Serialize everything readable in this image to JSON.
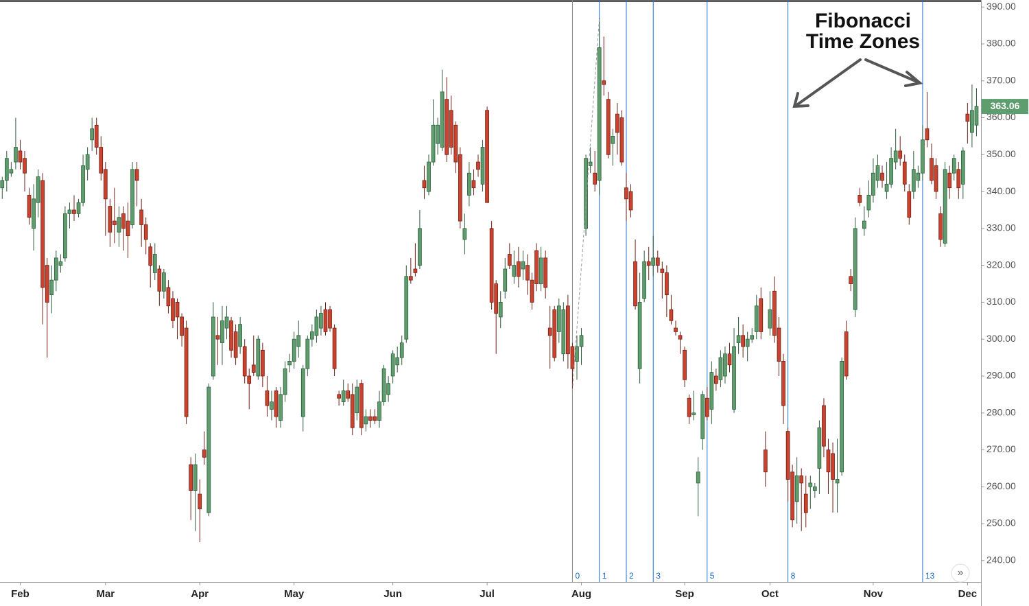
{
  "chart_data": {
    "type": "candlestick",
    "annotation": [
      "Fibonacci",
      "Time Zones"
    ],
    "ylim": [
      234.2,
      391.9
    ],
    "yticks": [
      {
        "value": 240,
        "label": "240.00"
      },
      {
        "value": 250,
        "label": "250.00"
      },
      {
        "value": 260,
        "label": "260.00"
      },
      {
        "value": 270,
        "label": "270.00"
      },
      {
        "value": 280,
        "label": "280.00"
      },
      {
        "value": 290,
        "label": "290.00"
      },
      {
        "value": 300,
        "label": "300.00"
      },
      {
        "value": 310,
        "label": "310.00"
      },
      {
        "value": 320,
        "label": "320.00"
      },
      {
        "value": 330,
        "label": "330.00"
      },
      {
        "value": 340,
        "label": "340.00"
      },
      {
        "value": 350,
        "label": "350.00"
      },
      {
        "value": 360,
        "label": "360.00"
      },
      {
        "value": 370,
        "label": "370.00"
      },
      {
        "value": 380,
        "label": "380.00"
      },
      {
        "value": 390,
        "label": "390.00"
      }
    ],
    "xlim": [
      -0.5,
      218
    ],
    "xticks": [
      {
        "value": 4,
        "label": "Feb"
      },
      {
        "value": 23,
        "label": "Mar"
      },
      {
        "value": 44,
        "label": "Apr"
      },
      {
        "value": 65,
        "label": "May"
      },
      {
        "value": 87,
        "label": "Jun"
      },
      {
        "value": 108,
        "label": "Jul"
      },
      {
        "value": 129,
        "label": "Aug"
      },
      {
        "value": 152,
        "label": "Sep"
      },
      {
        "value": 171,
        "label": "Oct"
      },
      {
        "value": 194,
        "label": "Nov"
      },
      {
        "value": 215,
        "label": "Dec"
      }
    ],
    "fib_zones": [
      {
        "value": 127,
        "label": "0"
      },
      {
        "value": 133,
        "label": "1"
      },
      {
        "value": 139,
        "label": "2"
      },
      {
        "value": 145,
        "label": "3"
      },
      {
        "value": 157,
        "label": "5"
      },
      {
        "value": 175,
        "label": "8"
      },
      {
        "value": 205,
        "label": "13"
      }
    ],
    "up_color": "#5e9e6e",
    "down_color": "#c9432f",
    "candles": [
      [
        341,
        344,
        338,
        343
      ],
      [
        343,
        351,
        340,
        349
      ],
      [
        345,
        348,
        344,
        346
      ],
      [
        348,
        360,
        346,
        352
      ],
      [
        351,
        354,
        346,
        348
      ],
      [
        349,
        351,
        340,
        345
      ],
      [
        339,
        341,
        331,
        333
      ],
      [
        330,
        342,
        324,
        338
      ],
      [
        337,
        346,
        333,
        344
      ],
      [
        343,
        345,
        304,
        314
      ],
      [
        320,
        322,
        295,
        310
      ],
      [
        312,
        320,
        307,
        316
      ],
      [
        316,
        324,
        313,
        322
      ],
      [
        320,
        323,
        318,
        321
      ],
      [
        322,
        336,
        321,
        334
      ],
      [
        334,
        337,
        330,
        335
      ],
      [
        335,
        339,
        332,
        334
      ],
      [
        334,
        338,
        333,
        337
      ],
      [
        337,
        350,
        336,
        347
      ],
      [
        346,
        352,
        343,
        350
      ],
      [
        354,
        360,
        351,
        357
      ],
      [
        358,
        360,
        350,
        352
      ],
      [
        352,
        355,
        343,
        345
      ],
      [
        346,
        348,
        328,
        338
      ],
      [
        336,
        338,
        325,
        329
      ],
      [
        332,
        341,
        326,
        331
      ],
      [
        329,
        336,
        325,
        333
      ],
      [
        334,
        336,
        324,
        330
      ],
      [
        332,
        337,
        322,
        328
      ],
      [
        331,
        348,
        330,
        346
      ],
      [
        346,
        348,
        336,
        343
      ],
      [
        335,
        338,
        325,
        331
      ],
      [
        331,
        333,
        323,
        327
      ],
      [
        325,
        326,
        314,
        320
      ],
      [
        318,
        326,
        316,
        323
      ],
      [
        319,
        320,
        309,
        313
      ],
      [
        313,
        319,
        311,
        318
      ],
      [
        314,
        316,
        307,
        309
      ],
      [
        311,
        313,
        303,
        305
      ],
      [
        310,
        311,
        300,
        306
      ],
      [
        306,
        307,
        298,
        301
      ],
      [
        303,
        305,
        277,
        279
      ],
      [
        266,
        268,
        251,
        259
      ],
      [
        259,
        269,
        248,
        266
      ],
      [
        258,
        262,
        245,
        254
      ],
      [
        270,
        275,
        266,
        268
      ],
      [
        253,
        288,
        252,
        287
      ],
      [
        290,
        310,
        289,
        306
      ],
      [
        301,
        306,
        293,
        300
      ],
      [
        299,
        309,
        293,
        305
      ],
      [
        303,
        309,
        300,
        306
      ],
      [
        305,
        306,
        295,
        297
      ],
      [
        302,
        304,
        293,
        295
      ],
      [
        298,
        306,
        296,
        304
      ],
      [
        298,
        300,
        288,
        290
      ],
      [
        290,
        292,
        281,
        288
      ],
      [
        293,
        301,
        290,
        291
      ],
      [
        290,
        301,
        289,
        300
      ],
      [
        297,
        299,
        287,
        290
      ],
      [
        286,
        290,
        279,
        282
      ],
      [
        281,
        286,
        278,
        283
      ],
      [
        286,
        287,
        276,
        279
      ],
      [
        278,
        287,
        276,
        285
      ],
      [
        285,
        294,
        283,
        292
      ],
      [
        293,
        296,
        291,
        294
      ],
      [
        294,
        302,
        292,
        300
      ],
      [
        298,
        305,
        295,
        301
      ],
      [
        279,
        293,
        275,
        292
      ],
      [
        292,
        301,
        290,
        300
      ],
      [
        300,
        304,
        298,
        302
      ],
      [
        301,
        308,
        299,
        306
      ],
      [
        303,
        309,
        301,
        307
      ],
      [
        308,
        310,
        301,
        302
      ],
      [
        308,
        309,
        302,
        303
      ],
      [
        303,
        304,
        290,
        292
      ],
      [
        285,
        286,
        282,
        284
      ],
      [
        283,
        289,
        282,
        286
      ],
      [
        286,
        288,
        283,
        284
      ],
      [
        285,
        288,
        274,
        276
      ],
      [
        280,
        289,
        278,
        287
      ],
      [
        288,
        289,
        274,
        276
      ],
      [
        277,
        281,
        275,
        279
      ],
      [
        279,
        281,
        276,
        278
      ],
      [
        279,
        281,
        277,
        278
      ],
      [
        278,
        286,
        276,
        283
      ],
      [
        283,
        293,
        282,
        292
      ],
      [
        285,
        290,
        283,
        288
      ],
      [
        290,
        297,
        288,
        296
      ],
      [
        293,
        298,
        291,
        295
      ],
      [
        295,
        301,
        293,
        299
      ],
      [
        300,
        320,
        299,
        317
      ],
      [
        317,
        322,
        315,
        316
      ],
      [
        319,
        326,
        317,
        318
      ],
      [
        320,
        335,
        319,
        330
      ],
      [
        343,
        347,
        338,
        341
      ],
      [
        340,
        350,
        339,
        348
      ],
      [
        348,
        365,
        347,
        358
      ],
      [
        353,
        360,
        350,
        358
      ],
      [
        352,
        373,
        351,
        367
      ],
      [
        365,
        371,
        348,
        350
      ],
      [
        362,
        366,
        350,
        352
      ],
      [
        358,
        359,
        345,
        348
      ],
      [
        350,
        352,
        330,
        332
      ],
      [
        327,
        334,
        323,
        330
      ],
      [
        339,
        348,
        336,
        345
      ],
      [
        343,
        346,
        339,
        341
      ],
      [
        348,
        350,
        344,
        346
      ],
      [
        342,
        354,
        340,
        352
      ],
      [
        362,
        363,
        337,
        337
      ],
      [
        330,
        332,
        308,
        310
      ],
      [
        315,
        316,
        296,
        307
      ],
      [
        306,
        313,
        303,
        310
      ],
      [
        313,
        322,
        311,
        319
      ],
      [
        323,
        326,
        319,
        320
      ],
      [
        317,
        324,
        315,
        320
      ],
      [
        321,
        325,
        314,
        317
      ],
      [
        319,
        324,
        316,
        321
      ],
      [
        320,
        323,
        312,
        316
      ],
      [
        316,
        318,
        308,
        310
      ],
      [
        324,
        326,
        313,
        315
      ],
      [
        315,
        325,
        313,
        322
      ],
      [
        322,
        324,
        311,
        314
      ],
      [
        303,
        309,
        292,
        301
      ],
      [
        308,
        309,
        294,
        295
      ],
      [
        302,
        311,
        299,
        309
      ],
      [
        296,
        310,
        294,
        308
      ],
      [
        309,
        312,
        292,
        296
      ],
      [
        298,
        299,
        286,
        292
      ],
      [
        294,
        301,
        289,
        298
      ],
      [
        298,
        303,
        293,
        301
      ],
      [
        330,
        350,
        328,
        349
      ],
      [
        347,
        352,
        345,
        348
      ],
      [
        345,
        351,
        340,
        342
      ],
      [
        343,
        387,
        339,
        379
      ],
      [
        370,
        382,
        366,
        369
      ],
      [
        365,
        367,
        349,
        350
      ],
      [
        353,
        357,
        347,
        355
      ],
      [
        361,
        364,
        350,
        356
      ],
      [
        360,
        362,
        347,
        348
      ],
      [
        341,
        345,
        332,
        338
      ],
      [
        340,
        342,
        333,
        335
      ],
      [
        321,
        327,
        308,
        309
      ],
      [
        292,
        318,
        288,
        310
      ],
      [
        311,
        324,
        310,
        321
      ],
      [
        321,
        325,
        316,
        320
      ],
      [
        320,
        328,
        317,
        322
      ],
      [
        322,
        324,
        318,
        320
      ],
      [
        319,
        321,
        311,
        318
      ],
      [
        318,
        320,
        306,
        312
      ],
      [
        308,
        312,
        304,
        305
      ],
      [
        303,
        305,
        301,
        302
      ],
      [
        301,
        302,
        296,
        300
      ],
      [
        297,
        298,
        287,
        289
      ],
      [
        284,
        285,
        277,
        279
      ],
      [
        279.5,
        286,
        278,
        280
      ],
      [
        261,
        268,
        252,
        264
      ],
      [
        273,
        286,
        270,
        285
      ],
      [
        284,
        287,
        278,
        279
      ],
      [
        281,
        294,
        277,
        291
      ],
      [
        290,
        292,
        286,
        288
      ],
      [
        289,
        297,
        287,
        295
      ],
      [
        290,
        298,
        288,
        296
      ],
      [
        296,
        299,
        291,
        293
      ],
      [
        281,
        303,
        280,
        298
      ],
      [
        299,
        306,
        296,
        301
      ],
      [
        301,
        304,
        295,
        298
      ],
      [
        298,
        302,
        294,
        300
      ],
      [
        300,
        303,
        299,
        301
      ],
      [
        302,
        312,
        300,
        309
      ],
      [
        311,
        314,
        300,
        302
      ],
      [
        270,
        275,
        260,
        264
      ],
      [
        303,
        313,
        301,
        308
      ],
      [
        313,
        317,
        299,
        301
      ],
      [
        303,
        306,
        290,
        294
      ],
      [
        294,
        296,
        277,
        282
      ],
      [
        275,
        276,
        256,
        262
      ],
      [
        264,
        266,
        249,
        251
      ],
      [
        256,
        268,
        250,
        263
      ],
      [
        263,
        265,
        248,
        261
      ],
      [
        258,
        263,
        249,
        253
      ],
      [
        260,
        263,
        254,
        261
      ],
      [
        259,
        261,
        257,
        260
      ],
      [
        265,
        278,
        258,
        276
      ],
      [
        282,
        284,
        268,
        271
      ],
      [
        270,
        273,
        258,
        264
      ],
      [
        269,
        272,
        253,
        262
      ],
      [
        261,
        273,
        253,
        262
      ],
      [
        264,
        295,
        263,
        294
      ],
      [
        302,
        305,
        289,
        290
      ],
      [
        317,
        319,
        313,
        315
      ],
      [
        308,
        333,
        306,
        330
      ],
      [
        339,
        341,
        336,
        337
      ],
      [
        330,
        336,
        328,
        332
      ],
      [
        335,
        343,
        333,
        339
      ],
      [
        339,
        349,
        337,
        345
      ],
      [
        343,
        350,
        341,
        347
      ],
      [
        345,
        347,
        341,
        343
      ],
      [
        340,
        348,
        338,
        342
      ],
      [
        342,
        352,
        341,
        349
      ],
      [
        348,
        357,
        346,
        351
      ],
      [
        351,
        355,
        347,
        349
      ],
      [
        348,
        350,
        340,
        342
      ],
      [
        340,
        342,
        331,
        333
      ],
      [
        340,
        351,
        338,
        346
      ],
      [
        343,
        347,
        341,
        345
      ],
      [
        345,
        358,
        343,
        354
      ],
      [
        357,
        367,
        352,
        354
      ],
      [
        349,
        353,
        342,
        343
      ],
      [
        347,
        349,
        338,
        340
      ],
      [
        334,
        336,
        325,
        327
      ],
      [
        326,
        348,
        325,
        346
      ],
      [
        345,
        347,
        338,
        341
      ],
      [
        345,
        350,
        343,
        349
      ],
      [
        346,
        348,
        338,
        341
      ],
      [
        342,
        352,
        338,
        351
      ],
      [
        361,
        364,
        353,
        359
      ],
      [
        356,
        369,
        352,
        362
      ],
      [
        358,
        368,
        355,
        363.06
      ]
    ]
  }
}
